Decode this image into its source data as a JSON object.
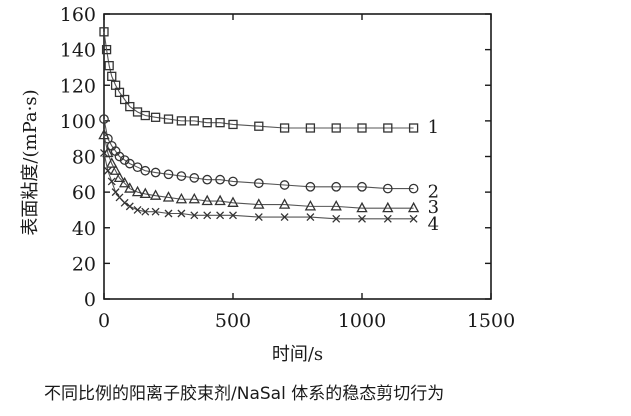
{
  "chart_data": {
    "type": "line",
    "title": "",
    "xlabel": "时间/s",
    "ylabel": "表面粘度/(mPa·s)",
    "xlim": [
      0,
      1500
    ],
    "ylim": [
      0,
      160
    ],
    "xticks": [
      0,
      500,
      1000,
      1500
    ],
    "yticks": [
      0,
      20,
      40,
      60,
      80,
      100,
      120,
      140,
      160
    ],
    "grid": false,
    "series": [
      {
        "name": "1",
        "marker": "square",
        "x": [
          0,
          10,
          20,
          30,
          45,
          60,
          80,
          100,
          130,
          160,
          200,
          250,
          300,
          350,
          400,
          450,
          500,
          600,
          700,
          800,
          900,
          1000,
          1100,
          1200
        ],
        "y": [
          150,
          140,
          131,
          125,
          120,
          116,
          112,
          108,
          105,
          103,
          102,
          101,
          100,
          100,
          99,
          99,
          98,
          97,
          96,
          96,
          96,
          96,
          96,
          96
        ]
      },
      {
        "name": "2",
        "marker": "circle",
        "x": [
          0,
          15,
          30,
          45,
          60,
          80,
          100,
          130,
          160,
          200,
          250,
          300,
          350,
          400,
          450,
          500,
          600,
          700,
          800,
          900,
          1000,
          1100,
          1200
        ],
        "y": [
          101,
          90,
          86,
          83,
          80,
          78,
          76,
          74,
          72,
          71,
          70,
          69,
          68,
          67,
          67,
          66,
          65,
          64,
          63,
          63,
          63,
          62,
          62
        ]
      },
      {
        "name": "3",
        "marker": "triangle",
        "x": [
          0,
          15,
          30,
          45,
          60,
          80,
          100,
          130,
          160,
          200,
          250,
          300,
          350,
          400,
          450,
          500,
          600,
          700,
          800,
          900,
          1000,
          1100,
          1200
        ],
        "y": [
          92,
          82,
          76,
          72,
          68,
          65,
          62,
          60,
          59,
          58,
          57,
          56,
          56,
          55,
          55,
          54,
          53,
          53,
          52,
          52,
          51,
          51,
          51
        ]
      },
      {
        "name": "4",
        "marker": "x",
        "x": [
          0,
          15,
          30,
          45,
          60,
          80,
          100,
          130,
          160,
          200,
          250,
          300,
          350,
          400,
          450,
          500,
          600,
          700,
          800,
          900,
          1000,
          1100,
          1200
        ],
        "y": [
          82,
          72,
          66,
          60,
          57,
          54,
          52,
          50,
          49,
          49,
          48,
          48,
          47,
          47,
          47,
          47,
          46,
          46,
          46,
          45,
          45,
          45,
          45
        ]
      }
    ]
  },
  "caption": "不同比例的阳离子胶束剂/NaSal 体系的稳态剪切行为",
  "colors": {
    "ink": "#1a1a1a",
    "series_line": "#555555",
    "marker": "#333333"
  }
}
